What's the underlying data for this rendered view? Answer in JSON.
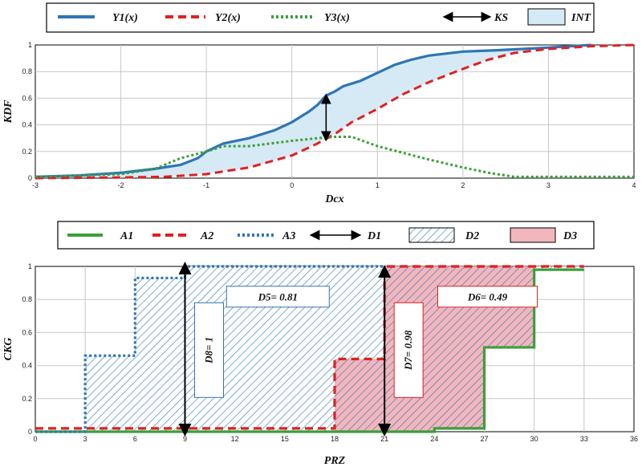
{
  "chart_data": [
    {
      "type": "line",
      "xlabel": "Dcx",
      "ylabel": "KDF",
      "xlim": [
        -3,
        4
      ],
      "ylim": [
        0,
        1
      ],
      "x_ticks": [
        "-3",
        "-2",
        "-1",
        "0",
        "1",
        "2",
        "3",
        "4"
      ],
      "y_ticks": [
        "0",
        "0.2",
        "0.4",
        "0.6",
        "0.8",
        "1"
      ],
      "grid": true,
      "legend_position": "top",
      "legend": [
        "Y1(x)",
        "Y2(x)",
        "Y3(x)",
        "KS",
        "INT"
      ],
      "series": [
        {
          "name": "Y1(x)",
          "color": "#2e75b6",
          "style": "solid",
          "x": [
            -3,
            -2.5,
            -2,
            -1.6,
            -1.3,
            -1.1,
            -1.0,
            -0.8,
            -0.5,
            -0.2,
            0,
            0.2,
            0.3,
            0.4,
            0.5,
            0.6,
            0.8,
            1.0,
            1.2,
            1.4,
            1.6,
            2.0,
            2.4,
            3.0,
            3.5
          ],
          "y": [
            0.01,
            0.02,
            0.04,
            0.07,
            0.1,
            0.15,
            0.2,
            0.26,
            0.3,
            0.36,
            0.42,
            0.5,
            0.55,
            0.62,
            0.65,
            0.69,
            0.73,
            0.79,
            0.85,
            0.89,
            0.92,
            0.95,
            0.96,
            0.98,
            1.0
          ]
        },
        {
          "name": "Y2(x)",
          "color": "#e02020",
          "style": "dashed",
          "x": [
            -3,
            -2,
            -1.5,
            -1.0,
            -0.5,
            0,
            0.3,
            0.5,
            0.7,
            1.0,
            1.3,
            1.6,
            2.0,
            2.3,
            2.6,
            3.0,
            3.5,
            4.0
          ],
          "y": [
            0.0,
            0.005,
            0.01,
            0.03,
            0.08,
            0.17,
            0.26,
            0.33,
            0.42,
            0.52,
            0.63,
            0.72,
            0.82,
            0.89,
            0.94,
            0.97,
            0.99,
            1.0
          ]
        },
        {
          "name": "Y3(x)",
          "color": "#3aa03a",
          "style": "dotted",
          "x": [
            -3,
            -2,
            -1.6,
            -1.3,
            -1.0,
            -0.8,
            -0.5,
            0,
            0.3,
            0.5,
            0.7,
            1.0,
            1.3,
            1.6,
            2.0,
            2.3,
            2.6,
            3.0,
            3.5,
            4.0
          ],
          "y": [
            0.01,
            0.03,
            0.07,
            0.15,
            0.2,
            0.24,
            0.24,
            0.28,
            0.3,
            0.31,
            0.31,
            0.24,
            0.19,
            0.14,
            0.08,
            0.04,
            0.01,
            0.01,
            0.01,
            0.01
          ]
        }
      ],
      "ks_marker": {
        "x": 0.4,
        "y_low": 0.29,
        "y_high": 0.62,
        "label": "KS"
      },
      "int_fill": {
        "label": "INT",
        "color": "#d6eaf5"
      }
    },
    {
      "type": "line",
      "xlabel": "PRZ",
      "ylabel": "CKG",
      "xlim": [
        0,
        36
      ],
      "ylim": [
        0,
        1
      ],
      "x_ticks": [
        "0",
        "3",
        "6",
        "9",
        "12",
        "15",
        "18",
        "21",
        "24",
        "27",
        "30",
        "33",
        "36"
      ],
      "y_ticks": [
        "0",
        "0.2",
        "0.4",
        "0.6",
        "0.8",
        "1"
      ],
      "grid": true,
      "legend_position": "top",
      "legend": [
        "A1",
        "A2",
        "A3",
        "D1",
        "D2",
        "D3"
      ],
      "series": [
        {
          "name": "A1",
          "color": "#3aa03a",
          "style": "solid",
          "step": true,
          "x": [
            0,
            24,
            24,
            27,
            27,
            30,
            30,
            33
          ],
          "y": [
            0,
            0,
            0.02,
            0.02,
            0.51,
            0.51,
            0.98,
            0.98
          ]
        },
        {
          "name": "A2",
          "color": "#e02020",
          "style": "dashed",
          "step": true,
          "x": [
            0,
            18,
            18,
            21,
            21,
            33
          ],
          "y": [
            0.02,
            0.02,
            0.44,
            0.44,
            1.0,
            1.0
          ]
        },
        {
          "name": "A3",
          "color": "#2e75b6",
          "style": "dotted",
          "step": true,
          "x": [
            0,
            3,
            3,
            6,
            6,
            9,
            9,
            21
          ],
          "y": [
            0,
            0,
            0.46,
            0.46,
            0.93,
            0.93,
            1.0,
            1.0
          ]
        }
      ],
      "arrows": [
        {
          "label": "D8= 1",
          "x": 9,
          "y_low": 0,
          "y_high": 1
        },
        {
          "label": "D7= 0.98",
          "x": 21,
          "y_low": 0,
          "y_high": 0.98
        }
      ],
      "annotations": [
        {
          "text": "D5= 0.81"
        },
        {
          "text": "D6= 0.49"
        }
      ],
      "hatch_color": "#2e75b6",
      "pink_fill": "#f2b6bd"
    }
  ],
  "legend1": {
    "y1": "Y1(x)",
    "y2": "Y2(x)",
    "y3": "Y3(x)",
    "ks": "KS",
    "int": "INT"
  },
  "legend2": {
    "a1": "A1",
    "a2": "A2",
    "a3": "A3",
    "d1": "D1",
    "d2": "D2",
    "d3": "D3"
  }
}
